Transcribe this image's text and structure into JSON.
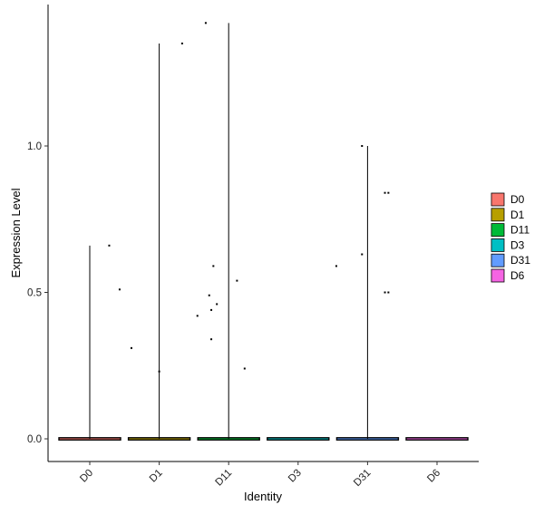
{
  "chart_data": {
    "type": "violin",
    "xlabel": "Identity",
    "ylabel": "Expression Level",
    "categories": [
      "D0",
      "D1",
      "D11",
      "D3",
      "D31",
      "D6"
    ],
    "y_ticks": [
      "0.0",
      "0.5",
      "1.0"
    ],
    "ylim": [
      -0.08,
      1.42
    ],
    "grid": false,
    "legend": {
      "position": "right",
      "items": [
        {
          "label": "D0",
          "color": "#F8766D"
        },
        {
          "label": "D1",
          "color": "#B79F00"
        },
        {
          "label": "D11",
          "color": "#00BA38"
        },
        {
          "label": "D3",
          "color": "#00BFC4"
        },
        {
          "label": "D31",
          "color": "#619CFF"
        },
        {
          "label": "D6",
          "color": "#F564E3"
        }
      ]
    },
    "violin_max": [
      0.66,
      1.35,
      1.42,
      0.0,
      1.0,
      0.0
    ],
    "points": [
      {
        "group": "D0",
        "offset": 0.28,
        "y": 0.66
      },
      {
        "group": "D0",
        "offset": 0.43,
        "y": 0.51
      },
      {
        "group": "D1",
        "offset": -0.4,
        "y": 0.31
      },
      {
        "group": "D1",
        "offset": 0.0,
        "y": 0.23
      },
      {
        "group": "D1",
        "offset": 0.33,
        "y": 1.35
      },
      {
        "group": "D11",
        "offset": -0.33,
        "y": 1.42
      },
      {
        "group": "D11",
        "offset": -0.45,
        "y": 0.42
      },
      {
        "group": "D11",
        "offset": -0.28,
        "y": 0.49
      },
      {
        "group": "D11",
        "offset": -0.22,
        "y": 0.59
      },
      {
        "group": "D11",
        "offset": -0.25,
        "y": 0.44
      },
      {
        "group": "D11",
        "offset": -0.17,
        "y": 0.46
      },
      {
        "group": "D11",
        "offset": -0.25,
        "y": 0.34
      },
      {
        "group": "D11",
        "offset": 0.12,
        "y": 0.54
      },
      {
        "group": "D11",
        "offset": 0.23,
        "y": 0.24
      },
      {
        "group": "D31",
        "offset": -0.45,
        "y": 0.59
      },
      {
        "group": "D31",
        "offset": -0.08,
        "y": 0.63
      },
      {
        "group": "D31",
        "offset": -0.08,
        "y": 1.0
      },
      {
        "group": "D31",
        "offset": 0.25,
        "y": 0.84
      },
      {
        "group": "D31",
        "offset": 0.3,
        "y": 0.84
      },
      {
        "group": "D31",
        "offset": 0.25,
        "y": 0.5
      },
      {
        "group": "D31",
        "offset": 0.3,
        "y": 0.5
      }
    ]
  }
}
